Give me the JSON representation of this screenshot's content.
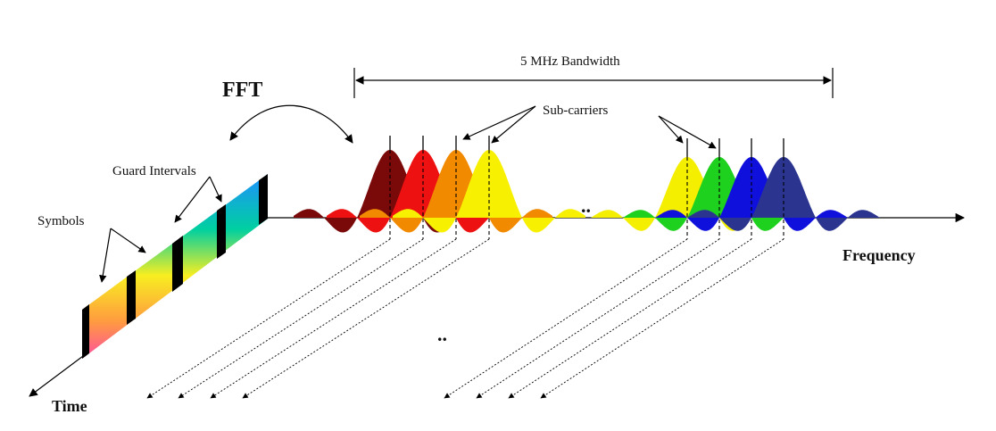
{
  "labels": {
    "fft": "FFT",
    "bandwidth": "5 MHz Bandwidth",
    "subcarriers": "Sub-carriers",
    "guard_intervals": "Guard Intervals",
    "symbols": "Symbols",
    "frequency": "Frequency",
    "time": "Time",
    "ellipsis_freq": "..",
    "ellipsis_time": ".."
  },
  "subcarriers_left": [
    {
      "color": "#7a0a0a"
    },
    {
      "color": "#ee1111"
    },
    {
      "color": "#f28a00"
    },
    {
      "color": "#f7f000"
    }
  ],
  "subcarriers_right": [
    {
      "color": "#f4ee00"
    },
    {
      "color": "#1fd11f"
    },
    {
      "color": "#1010dd"
    },
    {
      "color": "#2b3590"
    }
  ],
  "colors": {
    "axis": "#000000",
    "guard": "#000000"
  }
}
